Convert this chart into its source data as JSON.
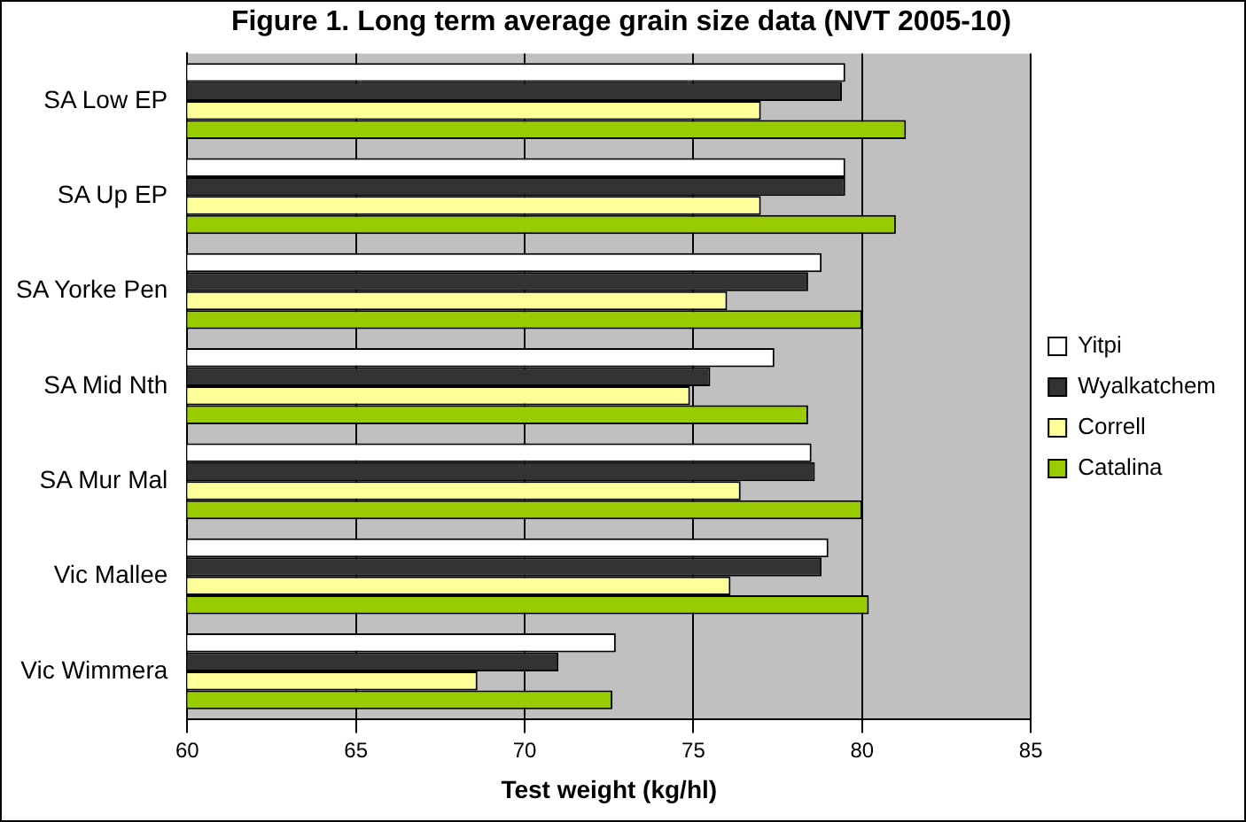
{
  "chart_data": {
    "type": "bar",
    "orientation": "horizontal",
    "title": "Figure 1. Long term average grain size data (NVT 2005-10)",
    "xlabel": "Test weight (kg/hl)",
    "categories": [
      "SA Low EP",
      "SA Up EP",
      "SA Yorke Pen",
      "SA Mid Nth",
      "SA Mur Mal",
      "Vic Mallee",
      "Vic Wimmera"
    ],
    "series": [
      {
        "name": "Yitpi",
        "color": "#ffffff",
        "values": [
          79.5,
          79.5,
          78.8,
          77.4,
          78.5,
          79.0,
          72.7
        ]
      },
      {
        "name": "Wyalkatchem",
        "color": "#333333",
        "values": [
          79.4,
          79.5,
          78.4,
          75.5,
          78.6,
          78.8,
          71.0
        ]
      },
      {
        "name": "Correll",
        "color": "#ffff99",
        "values": [
          77.0,
          77.0,
          76.0,
          74.9,
          76.4,
          76.1,
          68.6
        ]
      },
      {
        "name": "Catalina",
        "color": "#99cc00",
        "values": [
          81.3,
          81.0,
          80.0,
          78.4,
          80.0,
          80.2,
          72.6
        ]
      }
    ],
    "xlim": [
      60,
      85
    ],
    "xticks": [
      60,
      65,
      70,
      75,
      80,
      85
    ],
    "grid": "x",
    "legend": "right"
  }
}
